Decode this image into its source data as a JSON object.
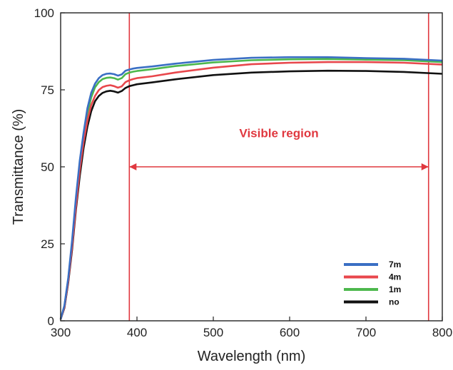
{
  "chart_data": {
    "type": "line",
    "title": "",
    "xlabel": "Wavelength (nm)",
    "ylabel": "Transmittance (%)",
    "xlim": [
      300,
      800
    ],
    "ylim": [
      0,
      100
    ],
    "xticks": [
      300,
      400,
      500,
      600,
      700,
      800
    ],
    "yticks": [
      0,
      25,
      50,
      75,
      100
    ],
    "grid": false,
    "legend_position": "bottom-right",
    "x": [
      300,
      305,
      310,
      315,
      320,
      325,
      330,
      335,
      340,
      345,
      350,
      355,
      360,
      365,
      370,
      375,
      380,
      385,
      390,
      395,
      400,
      420,
      450,
      500,
      550,
      600,
      650,
      700,
      750,
      800
    ],
    "series": [
      {
        "name": "7m",
        "color": "#3a6fc4",
        "values": [
          0.5,
          5,
          14,
          26,
          40,
          52,
          61,
          69,
          74,
          77,
          78.8,
          79.8,
          80.2,
          80.3,
          80.1,
          79.6,
          80,
          81.2,
          81.6,
          81.9,
          82.1,
          82.6,
          83.5,
          84.7,
          85.4,
          85.6,
          85.6,
          85.3,
          85.1,
          84.5
        ]
      },
      {
        "name": "4m",
        "color": "#e8474c",
        "values": [
          0.5,
          4.5,
          13,
          24,
          37,
          49,
          58,
          65,
          70,
          73,
          74.9,
          75.9,
          76.3,
          76.5,
          76.2,
          75.7,
          76.1,
          77.5,
          78.1,
          78.5,
          78.8,
          79.4,
          80.6,
          82.2,
          83.3,
          83.8,
          84,
          84,
          83.8,
          83.2
        ]
      },
      {
        "name": "1m",
        "color": "#4db84d",
        "values": [
          0.5,
          4.8,
          13.5,
          25,
          39,
          51,
          60,
          67.5,
          72.5,
          75.8,
          77.5,
          78.5,
          78.9,
          79,
          78.8,
          78.3,
          78.8,
          80.1,
          80.6,
          80.9,
          81.1,
          81.7,
          82.7,
          83.9,
          84.6,
          84.9,
          85,
          84.8,
          84.6,
          84
        ]
      },
      {
        "name": "no",
        "color": "#111111",
        "values": [
          0.5,
          4.2,
          12.5,
          23,
          36,
          47,
          56,
          63,
          68,
          71.3,
          73,
          74,
          74.5,
          74.7,
          74.5,
          74.1,
          74.6,
          75.6,
          76.2,
          76.5,
          76.8,
          77.4,
          78.4,
          79.8,
          80.6,
          81,
          81.2,
          81.1,
          80.8,
          80.2
        ]
      }
    ],
    "annotations": {
      "text": "Visible region",
      "text_color": "#e0383f",
      "vlines": [
        390,
        782
      ],
      "vline_color": "#e0383f",
      "arrow": {
        "x_from": 390,
        "x_to": 782,
        "y": 50
      }
    }
  }
}
